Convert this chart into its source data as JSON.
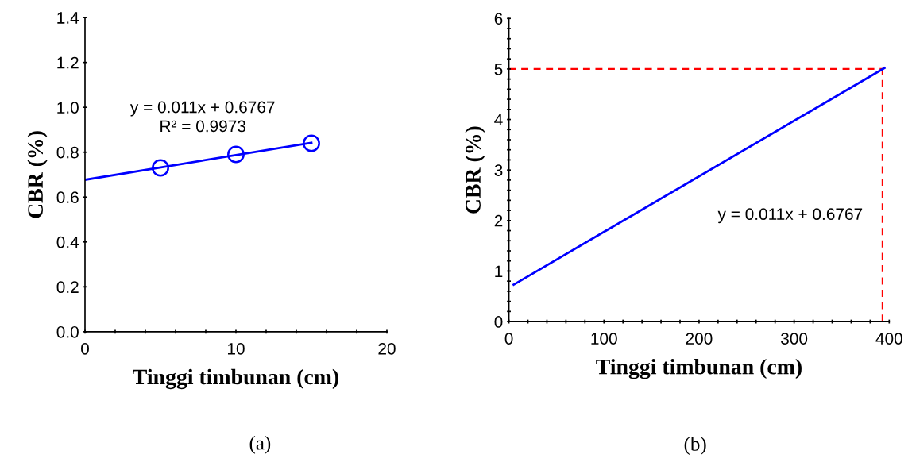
{
  "chart_data": [
    {
      "type": "scatter",
      "xlabel": "Tinggi timbunan (cm)",
      "ylabel": "CBR (%)",
      "series": [
        {
          "color": "#0000ff",
          "marker": "circle",
          "x": [
            5,
            10,
            15
          ],
          "values": [
            0.73,
            0.79,
            0.84
          ]
        },
        {
          "type": "line",
          "color": "#0000ff",
          "marker": "none",
          "x": [
            0,
            15
          ],
          "values": [
            0.677,
            0.842
          ]
        }
      ],
      "xlim": [
        0,
        20
      ],
      "ylim": [
        0,
        1.4
      ],
      "xticks": [
        0,
        {
          "value": 2,
          "label": null
        },
        {
          "value": 4,
          "label": null
        },
        {
          "value": 6,
          "label": null
        },
        {
          "value": 8,
          "label": null
        },
        10,
        {
          "value": 12,
          "label": null
        },
        {
          "value": 14,
          "label": null
        },
        {
          "value": 16,
          "label": null
        },
        {
          "value": 18,
          "label": null
        },
        20
      ],
      "yticks": [
        {
          "value": 0,
          "label": "0.0"
        },
        {
          "value": 0.2,
          "label": "0.2"
        },
        {
          "value": 0.4,
          "label": "0.4"
        },
        {
          "value": 0.6,
          "label": "0.6"
        },
        {
          "value": 0.8,
          "label": "0.8"
        },
        {
          "value": 1.0,
          "label": "1.0"
        },
        {
          "value": 1.2,
          "label": "1.2"
        },
        {
          "value": 1.4,
          "label": "1.4"
        }
      ],
      "grid": false,
      "legend": false,
      "annotations": [
        "y = 0.011x + 0.6767\nR² = 0.9973",
        "(a)"
      ]
    },
    {
      "type": "line",
      "xlabel": "Tinggi timbunan (cm)",
      "ylabel": "CBR (%)",
      "series": [
        {
          "color": "#0000ff",
          "marker": "none",
          "x": [
            5,
            395
          ],
          "values": [
            0.73,
            5.02
          ]
        }
      ],
      "xlim": [
        0,
        400
      ],
      "ylim": [
        0,
        6
      ],
      "xticks": [
        0,
        {
          "value": 20,
          "label": null
        },
        {
          "value": 40,
          "label": null
        },
        {
          "value": 60,
          "label": null
        },
        {
          "value": 80,
          "label": null
        },
        100,
        {
          "value": 120,
          "label": null
        },
        {
          "value": 140,
          "label": null
        },
        {
          "value": 160,
          "label": null
        },
        {
          "value": 180,
          "label": null
        },
        200,
        {
          "value": 220,
          "label": null
        },
        {
          "value": 240,
          "label": null
        },
        {
          "value": 260,
          "label": null
        },
        {
          "value": 280,
          "label": null
        },
        300,
        {
          "value": 320,
          "label": null
        },
        {
          "value": 340,
          "label": null
        },
        {
          "value": 360,
          "label": null
        },
        {
          "value": 380,
          "label": null
        },
        400
      ],
      "yticks": [
        0,
        {
          "value": 0.2,
          "label": null
        },
        {
          "value": 0.4,
          "label": null
        },
        {
          "value": 0.6,
          "label": null
        },
        {
          "value": 0.8,
          "label": null
        },
        1,
        {
          "value": 1.2,
          "label": null
        },
        {
          "value": 1.4,
          "label": null
        },
        {
          "value": 1.6,
          "label": null
        },
        {
          "value": 1.8,
          "label": null
        },
        2,
        {
          "value": 2.2,
          "label": null
        },
        {
          "value": 2.4,
          "label": null
        },
        {
          "value": 2.6,
          "label": null
        },
        {
          "value": 2.8,
          "label": null
        },
        3,
        {
          "value": 3.2,
          "label": null
        },
        {
          "value": 3.4,
          "label": null
        },
        {
          "value": 3.6,
          "label": null
        },
        {
          "value": 3.8,
          "label": null
        },
        4,
        {
          "value": 4.2,
          "label": null
        },
        {
          "value": 4.4,
          "label": null
        },
        {
          "value": 4.6,
          "label": null
        },
        {
          "value": 4.8,
          "label": null
        },
        5,
        {
          "value": 5.2,
          "label": null
        },
        {
          "value": 5.4,
          "label": null
        },
        {
          "value": 5.6,
          "label": null
        },
        {
          "value": 5.8,
          "label": null
        },
        6
      ],
      "ref_lines": [
        {
          "axis": "y",
          "value": 5,
          "color": "#ff0000",
          "line_style": "dashed"
        },
        {
          "axis": "x",
          "value": 393,
          "color": "#ff0000",
          "line_style": "dashed"
        }
      ],
      "grid": false,
      "legend": false,
      "annotations": [
        "y = 0.011x + 0.6767",
        "(b)"
      ]
    }
  ]
}
